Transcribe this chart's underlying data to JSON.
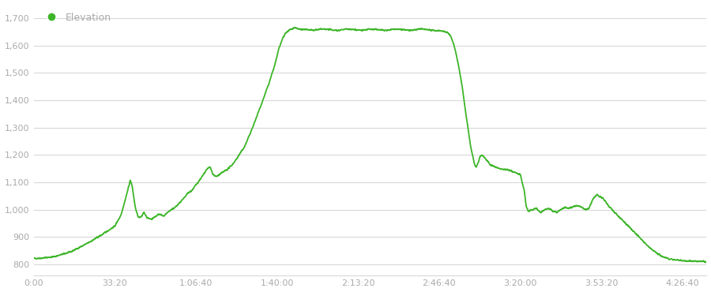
{
  "title": "Elevation",
  "line_color": "#3db529",
  "legend_dot_color": "#3db529",
  "background_color": "#ffffff",
  "grid_color": "#d8d8d8",
  "tick_color": "#aaaaaa",
  "label_color": "#aaaaaa",
  "ylim": [
    760,
    1750
  ],
  "yticks": [
    800,
    900,
    1000,
    1100,
    1200,
    1300,
    1400,
    1500,
    1600,
    1700
  ],
  "xtick_labels": [
    "0:00",
    "33:20",
    "1:06:40",
    "1:40:00",
    "2:13:20",
    "2:46:40",
    "3:20:00",
    "3:53:20",
    "4:26:40"
  ],
  "xtick_positions": [
    0,
    2000,
    4000,
    6000,
    8000,
    10000,
    12000,
    14000,
    16000
  ],
  "total_seconds": 16600,
  "line_width": 1.3,
  "waypoints": [
    [
      0,
      822
    ],
    [
      200,
      823
    ],
    [
      500,
      828
    ],
    [
      900,
      845
    ],
    [
      1300,
      875
    ],
    [
      1700,
      910
    ],
    [
      2000,
      940
    ],
    [
      2150,
      980
    ],
    [
      2300,
      1060
    ],
    [
      2380,
      1108
    ],
    [
      2430,
      1085
    ],
    [
      2500,
      1010
    ],
    [
      2580,
      970
    ],
    [
      2650,
      975
    ],
    [
      2720,
      990
    ],
    [
      2800,
      970
    ],
    [
      2900,
      965
    ],
    [
      3000,
      975
    ],
    [
      3100,
      985
    ],
    [
      3200,
      975
    ],
    [
      3300,
      990
    ],
    [
      3400,
      1000
    ],
    [
      3500,
      1010
    ],
    [
      3600,
      1025
    ],
    [
      3700,
      1040
    ],
    [
      3800,
      1060
    ],
    [
      3900,
      1070
    ],
    [
      4000,
      1090
    ],
    [
      4100,
      1110
    ],
    [
      4200,
      1130
    ],
    [
      4280,
      1150
    ],
    [
      4350,
      1155
    ],
    [
      4420,
      1130
    ],
    [
      4500,
      1120
    ],
    [
      4600,
      1130
    ],
    [
      4700,
      1140
    ],
    [
      4800,
      1150
    ],
    [
      4900,
      1165
    ],
    [
      5000,
      1185
    ],
    [
      5200,
      1230
    ],
    [
      5400,
      1300
    ],
    [
      5600,
      1380
    ],
    [
      5800,
      1460
    ],
    [
      5950,
      1530
    ],
    [
      6050,
      1590
    ],
    [
      6150,
      1630
    ],
    [
      6250,
      1650
    ],
    [
      6350,
      1660
    ],
    [
      6450,
      1665
    ],
    [
      6550,
      1660
    ],
    [
      6700,
      1658
    ],
    [
      6900,
      1655
    ],
    [
      7100,
      1660
    ],
    [
      7300,
      1658
    ],
    [
      7500,
      1655
    ],
    [
      7700,
      1660
    ],
    [
      7900,
      1658
    ],
    [
      8100,
      1655
    ],
    [
      8300,
      1660
    ],
    [
      8500,
      1658
    ],
    [
      8700,
      1655
    ],
    [
      8900,
      1660
    ],
    [
      9100,
      1658
    ],
    [
      9300,
      1655
    ],
    [
      9500,
      1660
    ],
    [
      9700,
      1658
    ],
    [
      9900,
      1655
    ],
    [
      10100,
      1652
    ],
    [
      10200,
      1648
    ],
    [
      10280,
      1635
    ],
    [
      10350,
      1610
    ],
    [
      10420,
      1570
    ],
    [
      10500,
      1510
    ],
    [
      10580,
      1440
    ],
    [
      10650,
      1360
    ],
    [
      10720,
      1290
    ],
    [
      10780,
      1230
    ],
    [
      10840,
      1190
    ],
    [
      10880,
      1160
    ],
    [
      10920,
      1155
    ],
    [
      10960,
      1170
    ],
    [
      11000,
      1190
    ],
    [
      11050,
      1200
    ],
    [
      11100,
      1195
    ],
    [
      11150,
      1185
    ],
    [
      11200,
      1175
    ],
    [
      11250,
      1165
    ],
    [
      11300,
      1160
    ],
    [
      11400,
      1155
    ],
    [
      11500,
      1150
    ],
    [
      11600,
      1148
    ],
    [
      11700,
      1145
    ],
    [
      11800,
      1140
    ],
    [
      11900,
      1135
    ],
    [
      12000,
      1130
    ],
    [
      12100,
      1070
    ],
    [
      12150,
      1010
    ],
    [
      12200,
      995
    ],
    [
      12300,
      1000
    ],
    [
      12400,
      1005
    ],
    [
      12500,
      990
    ],
    [
      12600,
      1000
    ],
    [
      12700,
      1005
    ],
    [
      12800,
      995
    ],
    [
      12900,
      990
    ],
    [
      13000,
      1000
    ],
    [
      13100,
      1010
    ],
    [
      13200,
      1005
    ],
    [
      13300,
      1010
    ],
    [
      13400,
      1015
    ],
    [
      13500,
      1010
    ],
    [
      13600,
      1000
    ],
    [
      13700,
      1005
    ],
    [
      13800,
      1040
    ],
    [
      13900,
      1055
    ],
    [
      13950,
      1050
    ],
    [
      14000,
      1045
    ],
    [
      14050,
      1040
    ],
    [
      14100,
      1030
    ],
    [
      14200,
      1010
    ],
    [
      14300,
      995
    ],
    [
      14400,
      980
    ],
    [
      14500,
      965
    ],
    [
      14600,
      950
    ],
    [
      14700,
      935
    ],
    [
      14800,
      920
    ],
    [
      14900,
      905
    ],
    [
      15000,
      890
    ],
    [
      15100,
      875
    ],
    [
      15200,
      860
    ],
    [
      15300,
      848
    ],
    [
      15400,
      838
    ],
    [
      15500,
      830
    ],
    [
      15600,
      824
    ],
    [
      15700,
      820
    ],
    [
      15800,
      818
    ],
    [
      15900,
      816
    ],
    [
      16000,
      814
    ],
    [
      16200,
      812
    ],
    [
      16400,
      811
    ],
    [
      16600,
      810
    ]
  ]
}
